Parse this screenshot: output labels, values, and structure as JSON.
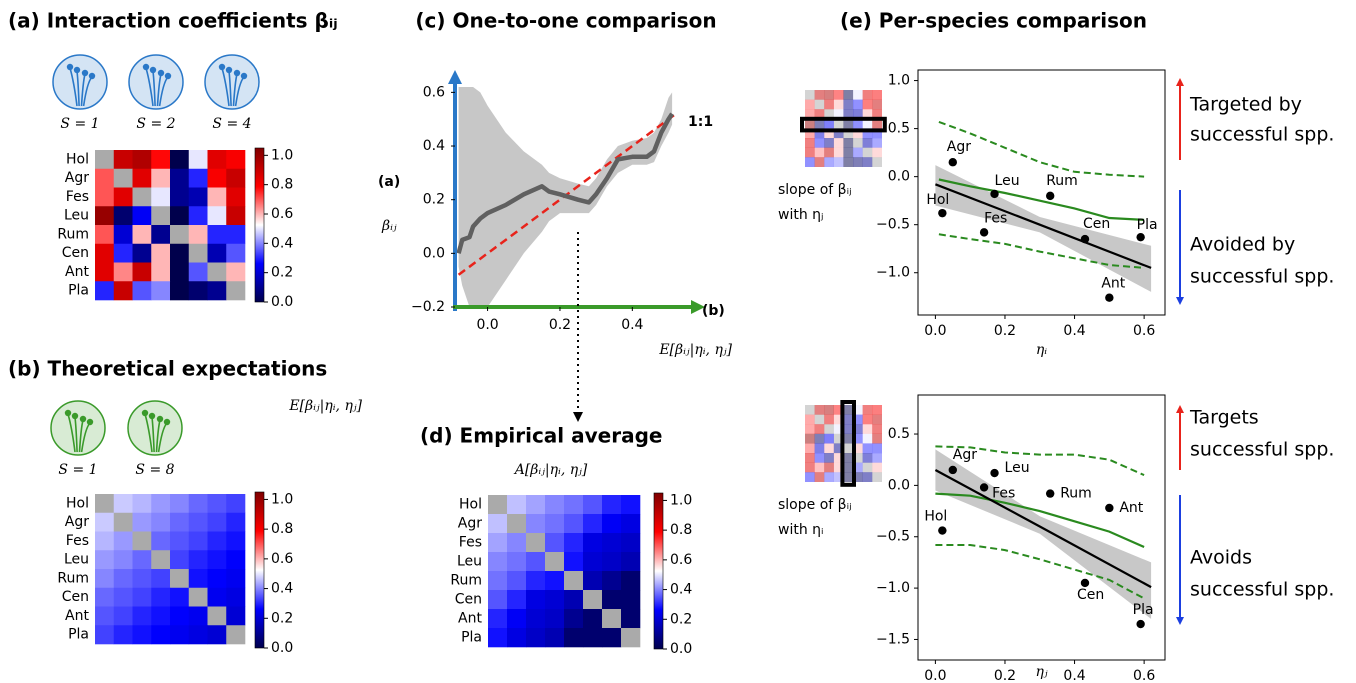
{
  "chart_data": [
    {
      "type": "heatmap",
      "title": "(a) Interaction coefficients βᵢⱼ",
      "title_color": "#2a78c8",
      "community_labels": [
        "S = 1",
        "S = 2",
        "S = 4"
      ],
      "icon_color": "#2a78c8",
      "categories": [
        "Hol",
        "Agr",
        "Fes",
        "Leu",
        "Rum",
        "Cen",
        "Ant",
        "Pla"
      ],
      "values": [
        [
          null,
          0.9,
          0.95,
          0.78,
          0.0,
          0.5,
          0.85,
          0.8
        ],
        [
          0.7,
          null,
          0.85,
          0.6,
          0.1,
          0.3,
          0.8,
          0.9
        ],
        [
          0.7,
          0.85,
          null,
          0.5,
          0.1,
          0.15,
          0.6,
          0.85
        ],
        [
          1.0,
          0.05,
          0.25,
          null,
          0.0,
          0.3,
          0.5,
          0.9
        ],
        [
          0.7,
          0.2,
          0.6,
          0.1,
          null,
          0.6,
          0.3,
          0.3
        ],
        [
          0.85,
          0.3,
          0.1,
          0.6,
          0.0,
          null,
          0.15,
          0.35
        ],
        [
          0.85,
          0.65,
          0.9,
          0.6,
          0.0,
          0.35,
          null,
          0.6
        ],
        [
          0.3,
          0.9,
          0.35,
          0.4,
          0.0,
          0.05,
          0.1,
          null
        ]
      ],
      "clim": [
        0,
        1.05
      ],
      "colorscale": [
        "#00004c",
        "#0000ff",
        "#ffffff",
        "#ff0000",
        "#7f0000"
      ],
      "missing_color": "#aaaaaa",
      "cticks": [
        {
          "value": 0,
          "label": "0.0"
        },
        0.2,
        0.4,
        0.6,
        0.8,
        {
          "value": 1,
          "label": "1.0"
        }
      ]
    },
    {
      "type": "heatmap",
      "title": "(b) Theoretical expectations",
      "title_color": "#3a9a2a",
      "community_labels": [
        "S = 1",
        "S = 8"
      ],
      "icon_color": "#3a9a2a",
      "matrix_label": "E[βᵢⱼ|ηᵢ, ηⱼ]",
      "categories": [
        "Hol",
        "Agr",
        "Fes",
        "Leu",
        "Rum",
        "Cen",
        "Ant",
        "Pla"
      ],
      "values": [
        [
          null,
          0.47,
          0.45,
          0.42,
          0.4,
          0.37,
          0.35,
          0.33
        ],
        [
          0.47,
          null,
          0.42,
          0.4,
          0.37,
          0.35,
          0.33,
          0.3
        ],
        [
          0.45,
          0.42,
          null,
          0.37,
          0.35,
          0.33,
          0.3,
          0.28
        ],
        [
          0.42,
          0.4,
          0.37,
          null,
          0.33,
          0.3,
          0.28,
          0.26
        ],
        [
          0.4,
          0.37,
          0.35,
          0.33,
          null,
          0.28,
          0.26,
          0.24
        ],
        [
          0.37,
          0.35,
          0.33,
          0.3,
          0.28,
          null,
          0.24,
          0.22
        ],
        [
          0.35,
          0.33,
          0.3,
          0.28,
          0.26,
          0.24,
          null,
          0.2
        ],
        [
          0.33,
          0.3,
          0.28,
          0.26,
          0.24,
          0.22,
          0.2,
          null
        ]
      ],
      "clim": [
        0,
        1.05
      ],
      "colorscale": [
        "#00004c",
        "#0000ff",
        "#ffffff",
        "#ff0000",
        "#7f0000"
      ],
      "missing_color": "#aaaaaa",
      "cticks": [
        {
          "value": 0,
          "label": "0.0"
        },
        0.2,
        0.4,
        0.6,
        0.8,
        {
          "value": 1,
          "label": "1.0"
        }
      ]
    },
    {
      "type": "line",
      "title": "(c) One-to-one comparison",
      "ylabel": "βᵢⱼ",
      "ylabel_tag": "(a)",
      "ylabel_color": "#2a78c8",
      "xlabel": "E[βᵢⱼ|ηᵢ, ηⱼ]",
      "xlabel_tag": "(b)",
      "xlabel_color": "#3a9a2a",
      "x": [
        -0.08,
        -0.07,
        -0.05,
        -0.04,
        -0.02,
        0.0,
        0.05,
        0.1,
        0.15,
        0.17,
        0.2,
        0.25,
        0.28,
        0.3,
        0.33,
        0.36,
        0.4,
        0.44,
        0.46,
        0.48,
        0.5,
        0.51
      ],
      "values": [
        0.0,
        0.05,
        0.06,
        0.1,
        0.13,
        0.15,
        0.18,
        0.22,
        0.25,
        0.23,
        0.22,
        0.2,
        0.19,
        0.22,
        0.28,
        0.35,
        0.36,
        0.36,
        0.38,
        0.45,
        0.5,
        0.52
      ],
      "lower": [
        -0.05,
        -0.12,
        -0.2,
        -0.2,
        -0.2,
        -0.2,
        -0.1,
        0.0,
        0.08,
        0.12,
        0.15,
        0.15,
        0.15,
        0.18,
        0.25,
        0.3,
        0.33,
        0.33,
        0.34,
        0.4,
        0.45,
        0.48
      ],
      "upper": [
        0.62,
        0.62,
        0.62,
        0.62,
        0.6,
        0.55,
        0.45,
        0.38,
        0.33,
        0.3,
        0.28,
        0.26,
        0.25,
        0.28,
        0.35,
        0.4,
        0.42,
        0.43,
        0.45,
        0.5,
        0.58,
        0.6
      ],
      "color": "#606060",
      "band_color": "#bdbdbd",
      "reference": {
        "name": "1:1",
        "x": [
          -0.08,
          0.52
        ],
        "values": [
          -0.08,
          0.52
        ],
        "color": "#e8231b"
      },
      "xlim": [
        -0.09,
        0.54
      ],
      "ylim": [
        -0.2,
        0.62
      ],
      "xticks": [
        {
          "value": 0,
          "label": "0.0"
        },
        0.2,
        0.4
      ],
      "yticks": [
        {
          "value": -0.2,
          "label": "−0.2"
        },
        {
          "value": 0,
          "label": "0.0"
        },
        0.2,
        0.4,
        0.6
      ]
    },
    {
      "type": "heatmap",
      "title": "(d) Empirical average",
      "subtitle": "A[βᵢⱼ|ηᵢ, ηⱼ]",
      "categories": [
        "Hol",
        "Agr",
        "Fes",
        "Leu",
        "Rum",
        "Cen",
        "Ant",
        "Pla"
      ],
      "values": [
        [
          null,
          0.46,
          0.43,
          0.4,
          0.38,
          0.35,
          0.3,
          0.28
        ],
        [
          0.46,
          null,
          0.4,
          0.38,
          0.35,
          0.3,
          0.25,
          0.22
        ],
        [
          0.43,
          0.4,
          null,
          0.35,
          0.3,
          0.22,
          0.2,
          0.18
        ],
        [
          0.4,
          0.38,
          0.35,
          null,
          0.28,
          0.2,
          0.18,
          0.15
        ],
        [
          0.38,
          0.35,
          0.3,
          0.28,
          null,
          0.15,
          0.1,
          0.05
        ],
        [
          0.35,
          0.3,
          0.22,
          0.2,
          0.15,
          null,
          0.05,
          0.05
        ],
        [
          0.3,
          0.25,
          0.2,
          0.18,
          0.1,
          0.05,
          null,
          0.05
        ],
        [
          0.28,
          0.22,
          0.18,
          0.15,
          0.05,
          0.05,
          0.05,
          null
        ]
      ],
      "clim": [
        0,
        1.05
      ],
      "colorscale": [
        "#00004c",
        "#0000ff",
        "#ffffff",
        "#ff0000",
        "#7f0000"
      ],
      "missing_color": "#aaaaaa",
      "cticks": [
        {
          "value": 0,
          "label": "0.0"
        },
        0.2,
        0.4,
        0.6,
        0.8,
        {
          "value": 1,
          "label": "1.0"
        }
      ]
    },
    {
      "type": "scatter",
      "title": "(e) Per-species comparison",
      "xlabel": "ηᵢ",
      "thumbnail_caption": [
        "slope of βᵢⱼ",
        "with ηⱼ"
      ],
      "point_labels": [
        "Agr",
        "Hol",
        "Leu",
        "Fes",
        "Rum",
        "Cen",
        "Pla",
        "Ant"
      ],
      "x": [
        0.05,
        0.02,
        0.17,
        0.14,
        0.33,
        0.43,
        0.59,
        0.5
      ],
      "values": [
        0.15,
        -0.38,
        -0.18,
        -0.58,
        -0.2,
        -0.65,
        -0.63,
        -1.26
      ],
      "color": "#000000",
      "fit": {
        "x": [
          0.0,
          0.3,
          0.62
        ],
        "values": [
          -0.08,
          -0.5,
          -0.95
        ],
        "lower": [
          -0.3,
          -0.58,
          -1.2
        ],
        "upper": [
          0.12,
          -0.42,
          -0.72
        ],
        "color": "#000000",
        "band_color": "#c8c8c8"
      },
      "expectation": {
        "x": [
          0.01,
          0.1,
          0.2,
          0.3,
          0.4,
          0.5,
          0.6
        ],
        "values": [
          -0.03,
          -0.1,
          -0.17,
          -0.25,
          -0.33,
          -0.43,
          -0.45
        ],
        "lower": [
          -0.6,
          -0.65,
          -0.7,
          -0.78,
          -0.85,
          -0.92,
          -0.95
        ],
        "upper": [
          0.57,
          0.45,
          0.3,
          0.15,
          0.05,
          0.02,
          0.0
        ],
        "color": "#2a8a1f"
      },
      "annotations": [
        {
          "text": [
            "Targeted by",
            "successful spp."
          ],
          "color": "#e8231b"
        },
        {
          "text": [
            "Avoided by",
            "successful spp."
          ],
          "color": "#1b3fe0"
        }
      ],
      "xlim": [
        -0.05,
        0.66
      ],
      "ylim": [
        -1.44,
        1.11
      ],
      "xticks": [
        {
          "value": 0,
          "label": "0.0"
        },
        0.2,
        0.4,
        0.6
      ],
      "yticks": [
        {
          "value": -1,
          "label": "−1.0"
        },
        {
          "value": -0.5,
          "label": "−0.5"
        },
        {
          "value": 0,
          "label": "0.0"
        },
        0.5,
        {
          "value": 1,
          "label": "1.0"
        }
      ]
    },
    {
      "type": "scatter",
      "xlabel": "ηⱼ",
      "thumbnail_caption": [
        "slope of βᵢⱼ",
        "with ηᵢ"
      ],
      "point_labels": [
        "Agr",
        "Leu",
        "Fes",
        "Rum",
        "Ant",
        "Hol",
        "Cen",
        "Pla"
      ],
      "x": [
        0.05,
        0.17,
        0.14,
        0.33,
        0.5,
        0.02,
        0.43,
        0.59
      ],
      "values": [
        0.15,
        0.12,
        -0.02,
        -0.08,
        -0.22,
        -0.44,
        -0.95,
        -1.35
      ],
      "color": "#000000",
      "fit": {
        "x": [
          0.0,
          0.3,
          0.62
        ],
        "values": [
          0.15,
          -0.4,
          -0.99
        ],
        "lower": [
          -0.05,
          -0.47,
          -1.3
        ],
        "upper": [
          0.35,
          -0.3,
          -0.75
        ],
        "color": "#000000",
        "band_color": "#c8c8c8"
      },
      "expectation": {
        "x": [
          0.0,
          0.1,
          0.2,
          0.3,
          0.4,
          0.5,
          0.6
        ],
        "values": [
          -0.08,
          -0.1,
          -0.17,
          -0.25,
          -0.35,
          -0.45,
          -0.6
        ],
        "lower": [
          -0.58,
          -0.58,
          -0.63,
          -0.72,
          -0.82,
          -0.92,
          -1.1
        ],
        "upper": [
          0.38,
          0.37,
          0.32,
          0.3,
          0.3,
          0.25,
          0.1
        ],
        "color": "#2a8a1f"
      },
      "annotations": [
        {
          "text": [
            "Targets",
            "successful spp."
          ],
          "color": "#e8231b"
        },
        {
          "text": [
            "Avoids",
            "successful spp."
          ],
          "color": "#1b3fe0"
        }
      ],
      "xlim": [
        -0.05,
        0.66
      ],
      "ylim": [
        -1.7,
        0.88
      ],
      "xticks": [
        {
          "value": 0,
          "label": "0.0"
        },
        0.2,
        0.4,
        0.6
      ],
      "yticks": [
        {
          "value": -1.5,
          "label": "−1.5"
        },
        {
          "value": -1,
          "label": "−1.0"
        },
        {
          "value": -0.5,
          "label": "−0.5"
        },
        {
          "value": 0,
          "label": "0.0"
        },
        0.5
      ]
    }
  ]
}
